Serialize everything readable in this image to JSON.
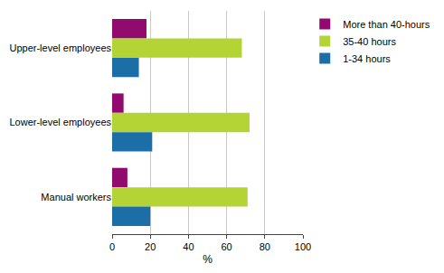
{
  "chart_data": {
    "type": "bar",
    "orientation": "horizontal",
    "categories": [
      "Upper-level employees",
      "Lower-level employees",
      "Manual workers"
    ],
    "series": [
      {
        "name": "More than 40-hours",
        "color": "#910a6e",
        "values": [
          18,
          6,
          8
        ]
      },
      {
        "name": "35-40 hours",
        "color": "#b4d335",
        "values": [
          68,
          72,
          71
        ]
      },
      {
        "name": "1-34 hours",
        "color": "#1b6ea6",
        "values": [
          14,
          21,
          20
        ]
      }
    ],
    "x_label": "%",
    "xlim": [
      0,
      100
    ],
    "xticks": [
      0,
      20,
      40,
      60,
      80,
      100
    ],
    "grid": true,
    "legend": "right"
  }
}
